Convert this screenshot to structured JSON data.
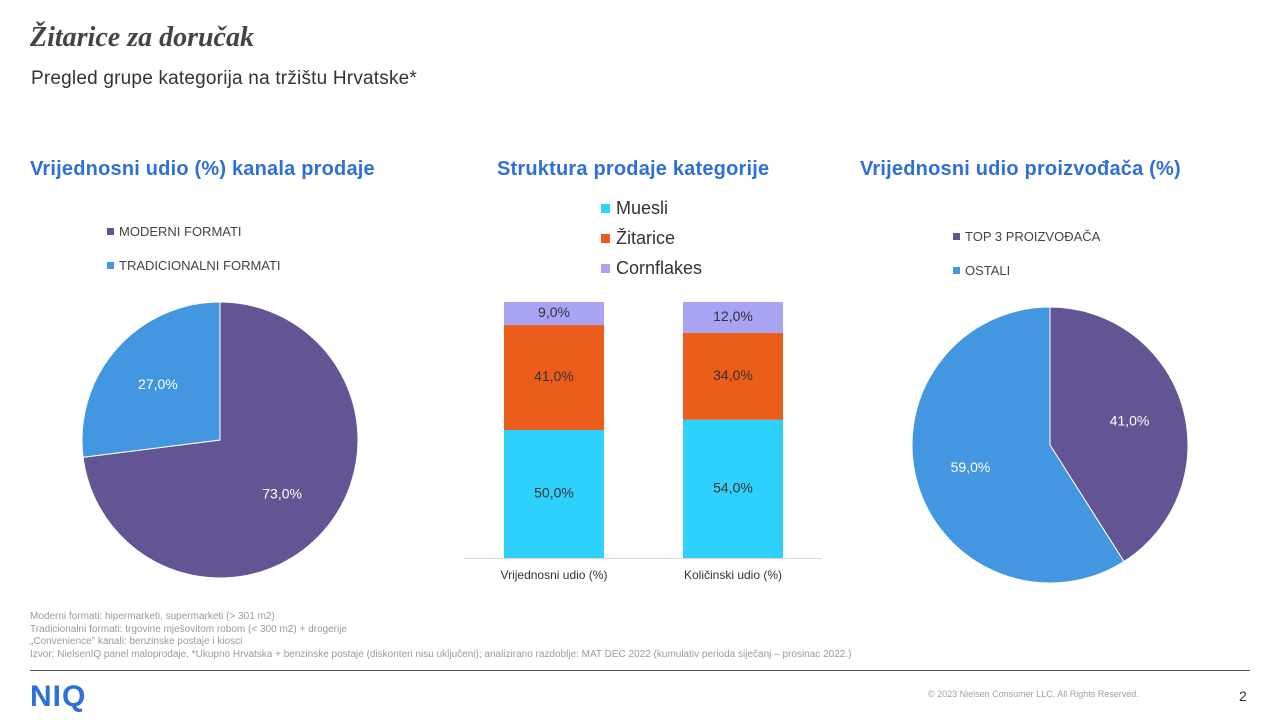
{
  "header": {
    "title": "Žitarice za doručak",
    "subtitle": "Pregled grupe kategorija na tržištu Hrvatske*"
  },
  "colors": {
    "title_blue": "#2f6fda",
    "purple": "#635594",
    "blue": "#4397e0",
    "cyan": "#2ed0fc",
    "orange": "#ec5d1b",
    "lavender": "#a8a4f3"
  },
  "chart_data": [
    {
      "type": "pie",
      "title": "Vrijednosni  udio (%) kanala prodaje",
      "legend_position": "top",
      "slices": [
        {
          "label": "MODERNI FORMATI",
          "value": 73.0,
          "display": "73,0%",
          "color": "#635594"
        },
        {
          "label": "TRADICIONALNI FORMATI",
          "value": 27.0,
          "display": "27,0%",
          "color": "#4397e0"
        }
      ]
    },
    {
      "type": "bar",
      "stacked": true,
      "title": "Struktura prodaje kategorije",
      "legend_position": "top",
      "categories": [
        "Vrijednosni udio (%)",
        "Količinski udio (%)"
      ],
      "ylim": [
        0,
        100
      ],
      "series": [
        {
          "name": "Muesli",
          "values": [
            50.0,
            54.0
          ],
          "labels": [
            "50,0%",
            "54,0%"
          ],
          "color": "#2ed0fc"
        },
        {
          "name": "Žitarice",
          "values": [
            41.0,
            34.0
          ],
          "labels": [
            "41,0%",
            "34,0%"
          ],
          "color": "#ec5d1b"
        },
        {
          "name": "Cornflakes",
          "values": [
            9.0,
            12.0
          ],
          "labels": [
            "9,0%",
            "12,0%"
          ],
          "color": "#a8a4f3"
        }
      ]
    },
    {
      "type": "pie",
      "title": "Vrijednosni  udio proizvođača (%)",
      "legend_position": "top",
      "slices": [
        {
          "label": "TOP 3 PROIZVOĐAČA",
          "value": 41.0,
          "display": "41,0%",
          "color": "#635594"
        },
        {
          "label": "OSTALI",
          "value": 59.0,
          "display": "59,0%",
          "color": "#4397e0"
        }
      ]
    }
  ],
  "footer": {
    "notes": [
      "Moderni formati: hipermarketi, supermarketi (> 301 m2)",
      "Tradicionalni formati: trgovine mješovitom robom (< 300 m2) + drogerije",
      "„Convenience” kanali: benzinske postaje i kiosci",
      "Izvor: NielsenIQ panel maloprodaje, *Ukupno Hrvatska + benzinske postaje (diskonteri nisu uključeni); analizirano razdoblje: MAT DEC 2022 (kumulativ perioda siječanj – prosinac 2022.)"
    ],
    "logo": "NIQ",
    "copyright": "© 2023 Nielsen Consumer LLC. All Rights Reserved.",
    "page_number": "2"
  }
}
